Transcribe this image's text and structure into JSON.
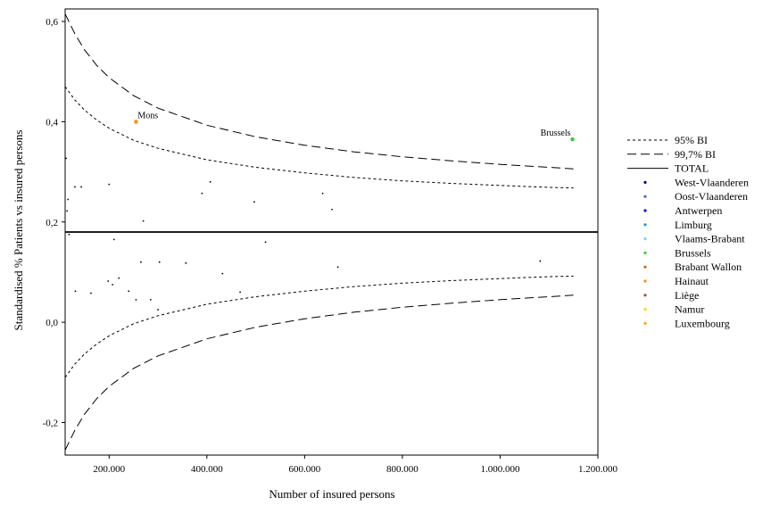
{
  "chart_data": {
    "type": "scatter",
    "xlabel": "Number of insured persons",
    "ylabel": "Standardised % Patients vs insured persons",
    "xlim": [
      110000,
      1200000
    ],
    "ylim": [
      -0.265,
      0.625
    ],
    "x_ticks": [
      200000,
      400000,
      600000,
      800000,
      1000000,
      1200000
    ],
    "x_tick_labels": [
      "200.000",
      "400.000",
      "600.000",
      "800.000",
      "1.000.000",
      "1.200.000"
    ],
    "y_ticks": [
      -0.2,
      0.0,
      0.2,
      0.4,
      0.6
    ],
    "y_tick_labels": [
      "-0,2",
      "0,0",
      "0,2",
      "0,4",
      "0,6"
    ],
    "grid": false,
    "legend_position": "right",
    "total_line": 0.18,
    "colors": {
      "line": "#000000",
      "West-Vlaanderen": "#00008b",
      "Oost-Vlaanderen": "#4169e1",
      "Antwerpen": "#0000ff",
      "Limburg": "#1e90ff",
      "Vlaams-Brabant": "#87ceeb",
      "Brussels": "#32cd32",
      "Brabant Wallon": "#d2691e",
      "Hainaut": "#ff8c00",
      "Liège": "#a0522d",
      "Namur": "#ffd700",
      "Luxembourg": "#ffa500"
    },
    "legend": [
      {
        "label": "95% BI",
        "kind": "dotted-line"
      },
      {
        "label": "99,7% BI",
        "kind": "dashed-line"
      },
      {
        "label": "TOTAL",
        "kind": "solid-line"
      },
      {
        "label": "West-Vlaanderen",
        "kind": "marker"
      },
      {
        "label": "Oost-Vlaanderen",
        "kind": "marker"
      },
      {
        "label": "Antwerpen",
        "kind": "marker"
      },
      {
        "label": "Limburg",
        "kind": "marker"
      },
      {
        "label": "Vlaams-Brabant",
        "kind": "marker"
      },
      {
        "label": "Brussels",
        "kind": "marker"
      },
      {
        "label": "Brabant Wallon",
        "kind": "marker"
      },
      {
        "label": "Hainaut",
        "kind": "marker"
      },
      {
        "label": "Liège",
        "kind": "marker"
      },
      {
        "label": "Namur",
        "kind": "marker"
      },
      {
        "label": "Luxembourg",
        "kind": "marker"
      }
    ],
    "series": [
      {
        "name": "99,7% BI",
        "style": "dashed",
        "x": [
          110000,
          130000,
          150000,
          175000,
          200000,
          250000,
          300000,
          400000,
          500000,
          600000,
          700000,
          800000,
          900000,
          1000000,
          1100000,
          1150000
        ],
        "y": [
          0.615,
          0.575,
          0.543,
          0.512,
          0.488,
          0.452,
          0.427,
          0.393,
          0.37,
          0.353,
          0.34,
          0.33,
          0.322,
          0.315,
          0.309,
          0.306
        ]
      },
      {
        "name": "95% BI",
        "style": "dotted",
        "x": [
          110000,
          130000,
          150000,
          175000,
          200000,
          250000,
          300000,
          400000,
          500000,
          600000,
          700000,
          800000,
          900000,
          1000000,
          1100000,
          1150000
        ],
        "y": [
          0.47,
          0.443,
          0.423,
          0.403,
          0.387,
          0.363,
          0.347,
          0.324,
          0.309,
          0.298,
          0.289,
          0.282,
          0.277,
          0.273,
          0.269,
          0.268
        ]
      },
      {
        "name": "95% BI",
        "style": "dotted",
        "x": [
          110000,
          130000,
          150000,
          175000,
          200000,
          250000,
          300000,
          400000,
          500000,
          600000,
          700000,
          800000,
          900000,
          1000000,
          1100000,
          1150000
        ],
        "y": [
          -0.11,
          -0.083,
          -0.063,
          -0.043,
          -0.027,
          -0.003,
          0.013,
          0.036,
          0.051,
          0.062,
          0.071,
          0.078,
          0.083,
          0.087,
          0.091,
          0.092
        ]
      },
      {
        "name": "99,7% BI",
        "style": "dashed",
        "x": [
          110000,
          130000,
          150000,
          175000,
          200000,
          250000,
          300000,
          400000,
          500000,
          600000,
          700000,
          800000,
          900000,
          1000000,
          1100000,
          1150000
        ],
        "y": [
          -0.255,
          -0.215,
          -0.183,
          -0.152,
          -0.128,
          -0.092,
          -0.067,
          -0.033,
          -0.01,
          0.007,
          0.02,
          0.03,
          0.038,
          0.045,
          0.051,
          0.054
        ]
      }
    ],
    "points": [
      {
        "x": 112000,
        "y": 0.327,
        "region": "West-Vlaanderen"
      },
      {
        "x": 114000,
        "y": 0.222,
        "region": "Oost-Vlaanderen"
      },
      {
        "x": 116000,
        "y": 0.245,
        "region": "Antwerpen"
      },
      {
        "x": 118000,
        "y": 0.175,
        "region": "Limburg"
      },
      {
        "x": 130000,
        "y": 0.27,
        "region": "Vlaams-Brabant"
      },
      {
        "x": 131000,
        "y": 0.062,
        "region": "Luxembourg"
      },
      {
        "x": 143000,
        "y": 0.27,
        "region": "West-Vlaanderen"
      },
      {
        "x": 163000,
        "y": 0.058,
        "region": "Namur"
      },
      {
        "x": 198000,
        "y": 0.082,
        "region": "Liège"
      },
      {
        "x": 200000,
        "y": 0.275,
        "region": "Oost-Vlaanderen"
      },
      {
        "x": 207000,
        "y": 0.075,
        "region": "Hainaut"
      },
      {
        "x": 210000,
        "y": 0.165,
        "region": "Antwerpen"
      },
      {
        "x": 220000,
        "y": 0.088,
        "region": "Namur"
      },
      {
        "x": 240000,
        "y": 0.062,
        "region": "Liège"
      },
      {
        "x": 255000,
        "y": 0.4,
        "region": "Hainaut",
        "label": "Mons"
      },
      {
        "x": 255000,
        "y": 0.045,
        "region": "Hainaut"
      },
      {
        "x": 265000,
        "y": 0.12,
        "region": "Brabant Wallon"
      },
      {
        "x": 270000,
        "y": 0.202,
        "region": "Limburg"
      },
      {
        "x": 285000,
        "y": 0.045,
        "region": "Liège"
      },
      {
        "x": 300000,
        "y": 0.025,
        "region": "Hainaut"
      },
      {
        "x": 303000,
        "y": 0.12,
        "region": "Vlaams-Brabant"
      },
      {
        "x": 357000,
        "y": 0.118,
        "region": "West-Vlaanderen"
      },
      {
        "x": 390000,
        "y": 0.257,
        "region": "Oost-Vlaanderen"
      },
      {
        "x": 407000,
        "y": 0.28,
        "region": "Antwerpen"
      },
      {
        "x": 432000,
        "y": 0.097,
        "region": "Liège"
      },
      {
        "x": 468000,
        "y": 0.06,
        "region": "Hainaut"
      },
      {
        "x": 497000,
        "y": 0.24,
        "region": "West-Vlaanderen"
      },
      {
        "x": 520000,
        "y": 0.16,
        "region": "Vlaams-Brabant"
      },
      {
        "x": 637000,
        "y": 0.257,
        "region": "Oost-Vlaanderen"
      },
      {
        "x": 656000,
        "y": 0.225,
        "region": "Limburg"
      },
      {
        "x": 668000,
        "y": 0.11,
        "region": "Liège"
      },
      {
        "x": 1082000,
        "y": 0.122,
        "region": "Antwerpen"
      },
      {
        "x": 1148000,
        "y": 0.365,
        "region": "Brussels",
        "label": "Brussels"
      }
    ]
  }
}
